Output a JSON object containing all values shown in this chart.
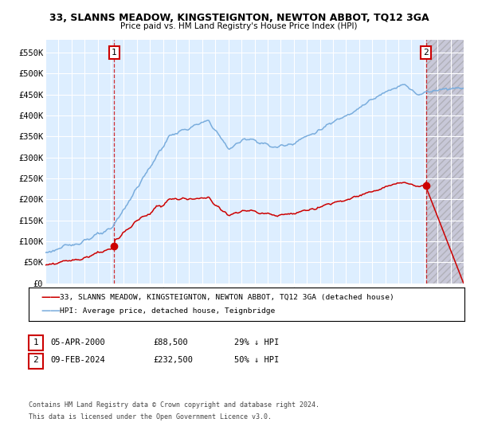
{
  "title": "33, SLANNS MEADOW, KINGSTEIGNTON, NEWTON ABBOT, TQ12 3GA",
  "subtitle": "Price paid vs. HM Land Registry's House Price Index (HPI)",
  "xlim": [
    1995.0,
    2027.0
  ],
  "ylim": [
    0,
    580000
  ],
  "yticks": [
    0,
    50000,
    100000,
    150000,
    200000,
    250000,
    300000,
    350000,
    400000,
    450000,
    500000,
    550000
  ],
  "ytick_labels": [
    "£0",
    "£50K",
    "£100K",
    "£150K",
    "£200K",
    "£250K",
    "£300K",
    "£350K",
    "£400K",
    "£450K",
    "£500K",
    "£550K"
  ],
  "xticks": [
    1995,
    1996,
    1997,
    1998,
    1999,
    2000,
    2001,
    2002,
    2003,
    2004,
    2005,
    2006,
    2007,
    2008,
    2009,
    2010,
    2011,
    2012,
    2013,
    2014,
    2015,
    2016,
    2017,
    2018,
    2019,
    2020,
    2021,
    2022,
    2023,
    2024,
    2025,
    2026,
    2027
  ],
  "hpi_color": "#7aaddd",
  "price_color": "#cc0000",
  "vline_color": "#cc0000",
  "bg_color": "#ddeeff",
  "future_bg_color": "#c8c8d8",
  "grid_color": "#ffffff",
  "transaction1": {
    "year": 2000.27,
    "price": 88500,
    "label": "1"
  },
  "transaction2": {
    "year": 2024.11,
    "price": 232500,
    "label": "2"
  },
  "legend_price_label": "33, SLANNS MEADOW, KINGSTEIGNTON, NEWTON ABBOT, TQ12 3GA (detached house)",
  "legend_hpi_label": "HPI: Average price, detached house, Teignbridge",
  "table_row1": [
    "1",
    "05-APR-2000",
    "£88,500",
    "29% ↓ HPI"
  ],
  "table_row2": [
    "2",
    "09-FEB-2024",
    "£232,500",
    "50% ↓ HPI"
  ],
  "footer": "Contains HM Land Registry data © Crown copyright and database right 2024.\nThis data is licensed under the Open Government Licence v3.0.",
  "future_start": 2024.11
}
